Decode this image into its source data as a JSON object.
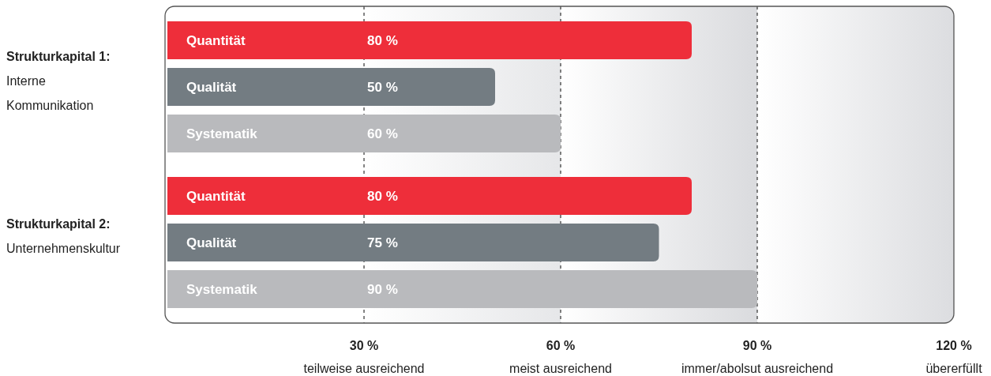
{
  "chart_data": {
    "type": "bar",
    "orientation": "horizontal",
    "categories": [
      "Strukturkapital 1:\nInterne\nKommunikation",
      "Strukturkapital 2:\nUnternehmenskultur"
    ],
    "series": [
      {
        "name": "Quantität",
        "color": "#ee2e3a",
        "values": [
          80,
          80
        ],
        "value_labels": [
          "80 %",
          "80 %"
        ]
      },
      {
        "name": "Qualität",
        "color": "#737c82",
        "values": [
          50,
          75
        ],
        "value_labels": [
          "50 %",
          "75 %"
        ]
      },
      {
        "name": "Systematik",
        "color": "#b9babd",
        "values": [
          60,
          90
        ],
        "value_labels": [
          "60 %",
          "90 %"
        ]
      }
    ],
    "xlim": [
      0,
      120
    ],
    "xticks": [
      {
        "value": 30,
        "label": "30 %\nteilweise ausreichend"
      },
      {
        "value": 60,
        "label": "60 %\nmeist ausreichend"
      },
      {
        "value": 90,
        "label": "90 %\nimmer/abolsut ausreichend"
      },
      {
        "value": 120,
        "label": "120 %\nübererfüllt"
      }
    ],
    "grid": "x",
    "bands": [
      {
        "axis": "x",
        "from": 30,
        "to": 60,
        "color": "#e6e7e9"
      },
      {
        "axis": "x",
        "from": 60,
        "to": 90,
        "color": "#dadbde"
      },
      {
        "axis": "x",
        "from": 90,
        "to": 120,
        "color": "#dcdde0"
      }
    ]
  }
}
